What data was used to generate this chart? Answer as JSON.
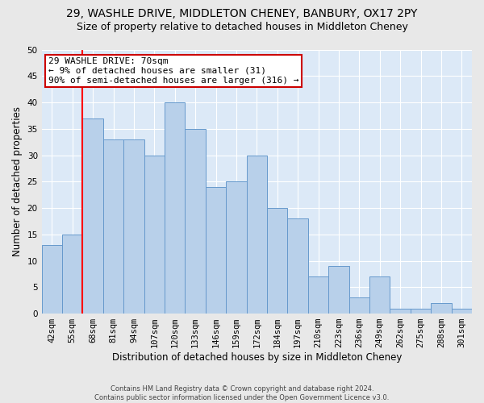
{
  "title1": "29, WASHLE DRIVE, MIDDLETON CHENEY, BANBURY, OX17 2PY",
  "title2": "Size of property relative to detached houses in Middleton Cheney",
  "xlabel": "Distribution of detached houses by size in Middleton Cheney",
  "ylabel": "Number of detached properties",
  "footer1": "Contains HM Land Registry data © Crown copyright and database right 2024.",
  "footer2": "Contains public sector information licensed under the Open Government Licence v3.0.",
  "annotation_line1": "29 WASHLE DRIVE: 70sqm",
  "annotation_line2": "← 9% of detached houses are smaller (31)",
  "annotation_line3": "90% of semi-detached houses are larger (316) →",
  "bar_values": [
    13,
    15,
    37,
    33,
    33,
    30,
    40,
    35,
    24,
    25,
    30,
    20,
    18,
    7,
    9,
    3,
    7,
    1,
    1,
    2,
    1
  ],
  "bar_labels": [
    "42sqm",
    "55sqm",
    "68sqm",
    "81sqm",
    "94sqm",
    "107sqm",
    "120sqm",
    "133sqm",
    "146sqm",
    "159sqm",
    "172sqm",
    "184sqm",
    "197sqm",
    "210sqm",
    "223sqm",
    "236sqm",
    "249sqm",
    "262sqm",
    "275sqm",
    "288sqm",
    "301sqm"
  ],
  "bar_color": "#b8d0ea",
  "bar_edge_color": "#6699cc",
  "vline_x_idx": 2,
  "ylim": [
    0,
    50
  ],
  "yticks": [
    0,
    5,
    10,
    15,
    20,
    25,
    30,
    35,
    40,
    45,
    50
  ],
  "bg_color": "#dce9f7",
  "fig_bg_color": "#e8e8e8",
  "annotation_box_color": "#ffffff",
  "annotation_box_edge": "#cc0000",
  "title_fontsize": 10,
  "subtitle_fontsize": 9,
  "axis_label_fontsize": 8.5,
  "tick_fontsize": 7.5,
  "annotation_fontsize": 8
}
